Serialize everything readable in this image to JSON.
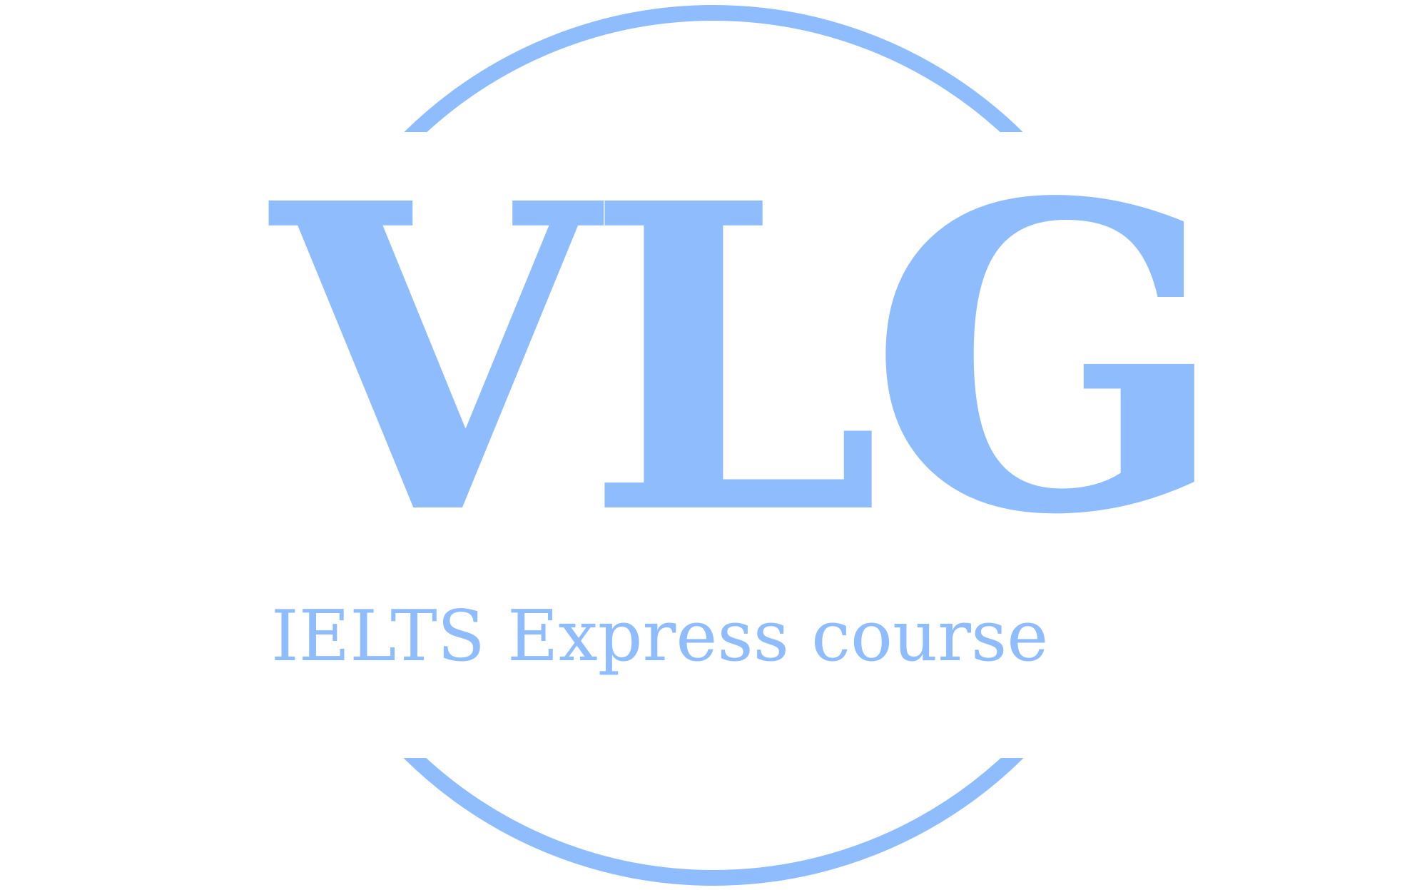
{
  "logo": {
    "brand_text": "VLG",
    "tagline": "IELTS Express course",
    "color": "#8fbcfd",
    "background": "#ffffff"
  }
}
